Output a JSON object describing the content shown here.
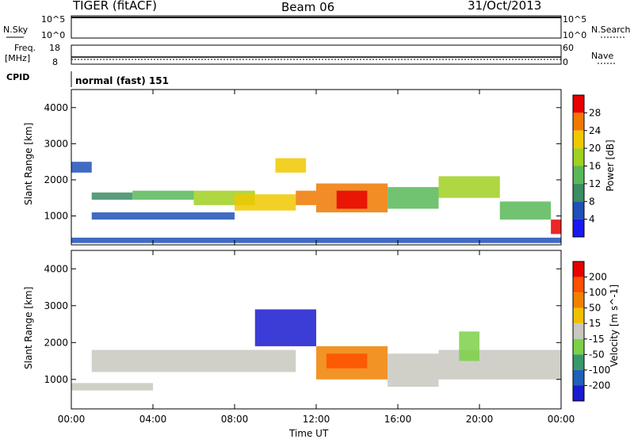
{
  "header": {
    "radar": "TIGER (fitACF)",
    "beam": "Beam 06",
    "date": "31/Oct/2013"
  },
  "top_panels": {
    "nsky_label": "N.Sky",
    "nsky_top": "10^5",
    "nsky_bottom": "10^0",
    "nsearch_top": "10^5",
    "nsearch_bottom": "10^0",
    "nsearch_label": "N.Search",
    "freq_label": "Freq.",
    "freq_unit": "[MHz]",
    "freq_top": "18",
    "freq_bottom": "8",
    "nave_top": "60",
    "nave_bottom": "0",
    "nave_label": "Nave",
    "cpid_label": "CPID",
    "cpid_value": "normal (fast) 151"
  },
  "chart_data": [
    {
      "type": "heatmap",
      "name": "power",
      "ylabel": "Slant Range [km]",
      "ylim": [
        200,
        4500
      ],
      "yticks": [
        1000,
        2000,
        3000,
        4000
      ],
      "colorbar_label": "Power [dB]",
      "colorbar_ticks": [
        4,
        8,
        12,
        16,
        20,
        24,
        28
      ],
      "colorbar_colors": [
        "#1a1af0",
        "#2050b8",
        "#3c8c64",
        "#58b858",
        "#a0d020",
        "#f0c800",
        "#f07800",
        "#e80000"
      ],
      "bands": [
        {
          "t0": 0.0,
          "t1": 1.0,
          "r0": 2200,
          "r1": 2500,
          "level": 1
        },
        {
          "t0": 1.0,
          "t1": 3.0,
          "r0": 1450,
          "r1": 1650,
          "level": 2
        },
        {
          "t0": 3.0,
          "t1": 6.0,
          "r0": 1450,
          "r1": 1700,
          "level": 3
        },
        {
          "t0": 6.0,
          "t1": 9.0,
          "r0": 1300,
          "r1": 1700,
          "level": 4
        },
        {
          "t0": 8.0,
          "t1": 11.0,
          "r0": 1150,
          "r1": 1600,
          "level": 5
        },
        {
          "t0": 10.0,
          "t1": 11.5,
          "r0": 2200,
          "r1": 2600,
          "level": 5
        },
        {
          "t0": 11.0,
          "t1": 12.0,
          "r0": 1300,
          "r1": 1700,
          "level": 6
        },
        {
          "t0": 12.0,
          "t1": 15.5,
          "r0": 1100,
          "r1": 1900,
          "level": 6
        },
        {
          "t0": 13.0,
          "t1": 14.5,
          "r0": 1200,
          "r1": 1700,
          "level": 7
        },
        {
          "t0": 15.5,
          "t1": 18.0,
          "r0": 1200,
          "r1": 1800,
          "level": 3
        },
        {
          "t0": 18.0,
          "t1": 21.0,
          "r0": 1500,
          "r1": 2100,
          "level": 4
        },
        {
          "t0": 21.0,
          "t1": 23.5,
          "r0": 900,
          "r1": 1400,
          "level": 3
        },
        {
          "t0": 23.5,
          "t1": 24.0,
          "r0": 500,
          "r1": 900,
          "level": 7
        },
        {
          "t0": 0.0,
          "t1": 24.0,
          "r0": 250,
          "r1": 400,
          "level": 1
        },
        {
          "t0": 1.0,
          "t1": 8.0,
          "r0": 900,
          "r1": 1100,
          "level": 1
        }
      ]
    },
    {
      "type": "heatmap",
      "name": "velocity",
      "ylabel": "Slant Range [km]",
      "ylim": [
        200,
        4500
      ],
      "yticks": [
        1000,
        2000,
        3000,
        4000
      ],
      "colorbar_label": "Velocity [m s^-1]",
      "colorbar_ticks": [
        200,
        100,
        50,
        15,
        -15,
        -50,
        -100,
        -200
      ],
      "colorbar_colors": [
        "#1a1ad0",
        "#2060b8",
        "#38986c",
        "#7cd048",
        "#c8c8c0",
        "#f0c000",
        "#f08000",
        "#ff5000",
        "#e80000"
      ],
      "bands": [
        {
          "t0": 1.0,
          "t1": 11.0,
          "r0": 1200,
          "r1": 1800,
          "level": 4
        },
        {
          "t0": 0.0,
          "t1": 4.0,
          "r0": 700,
          "r1": 900,
          "level": 4
        },
        {
          "t0": 9.0,
          "t1": 12.0,
          "r0": 1900,
          "r1": 2900,
          "level": 0
        },
        {
          "t0": 12.0,
          "t1": 15.5,
          "r0": 1000,
          "r1": 1900,
          "level": 6
        },
        {
          "t0": 12.5,
          "t1": 14.5,
          "r0": 1300,
          "r1": 1700,
          "level": 7
        },
        {
          "t0": 15.5,
          "t1": 18.0,
          "r0": 800,
          "r1": 1700,
          "level": 4
        },
        {
          "t0": 18.0,
          "t1": 24.0,
          "r0": 1000,
          "r1": 1800,
          "level": 4
        },
        {
          "t0": 19.0,
          "t1": 20.0,
          "r0": 1500,
          "r1": 2300,
          "level": 3
        }
      ]
    }
  ],
  "x_axis": {
    "label": "Time UT",
    "ticks": [
      "00:00",
      "04:00",
      "08:00",
      "12:00",
      "16:00",
      "20:00",
      "00:00"
    ],
    "xlim": [
      0,
      24
    ]
  }
}
